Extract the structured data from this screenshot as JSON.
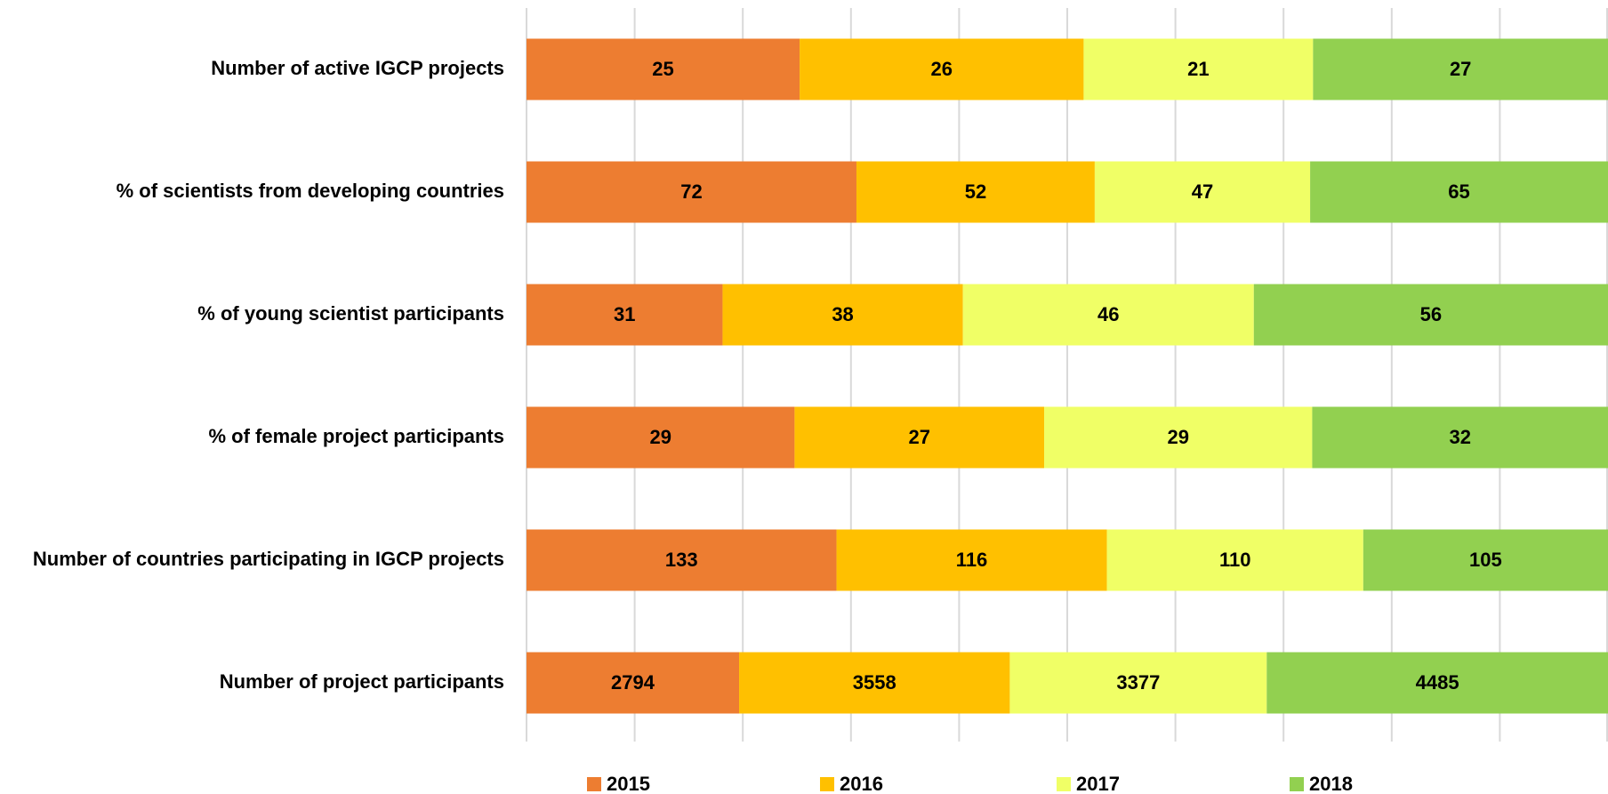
{
  "chart_data": {
    "type": "bar",
    "orientation": "horizontal",
    "stacking": "percent",
    "categories": [
      "Number of active IGCP projects",
      "% of scientists from developing countries",
      "% of young scientist participants",
      "% of female project participants",
      "Number of countries participating in IGCP projects",
      "Number of project participants"
    ],
    "series": [
      {
        "name": "2015",
        "color": "#ed7d31",
        "values": [
          25,
          72,
          31,
          29,
          133,
          2794
        ]
      },
      {
        "name": "2016",
        "color": "#ffc000",
        "values": [
          26,
          52,
          38,
          27,
          116,
          3558
        ]
      },
      {
        "name": "2017",
        "color": "#f0ff66",
        "values": [
          21,
          47,
          46,
          29,
          110,
          3377
        ]
      },
      {
        "name": "2018",
        "color": "#92d050",
        "values": [
          27,
          65,
          56,
          32,
          105,
          4485
        ]
      }
    ],
    "xlim": [
      0,
      100
    ],
    "xticks": [
      0,
      10,
      20,
      30,
      40,
      50,
      60,
      70,
      80,
      90,
      100
    ],
    "grid": true,
    "legend": "bottom"
  }
}
